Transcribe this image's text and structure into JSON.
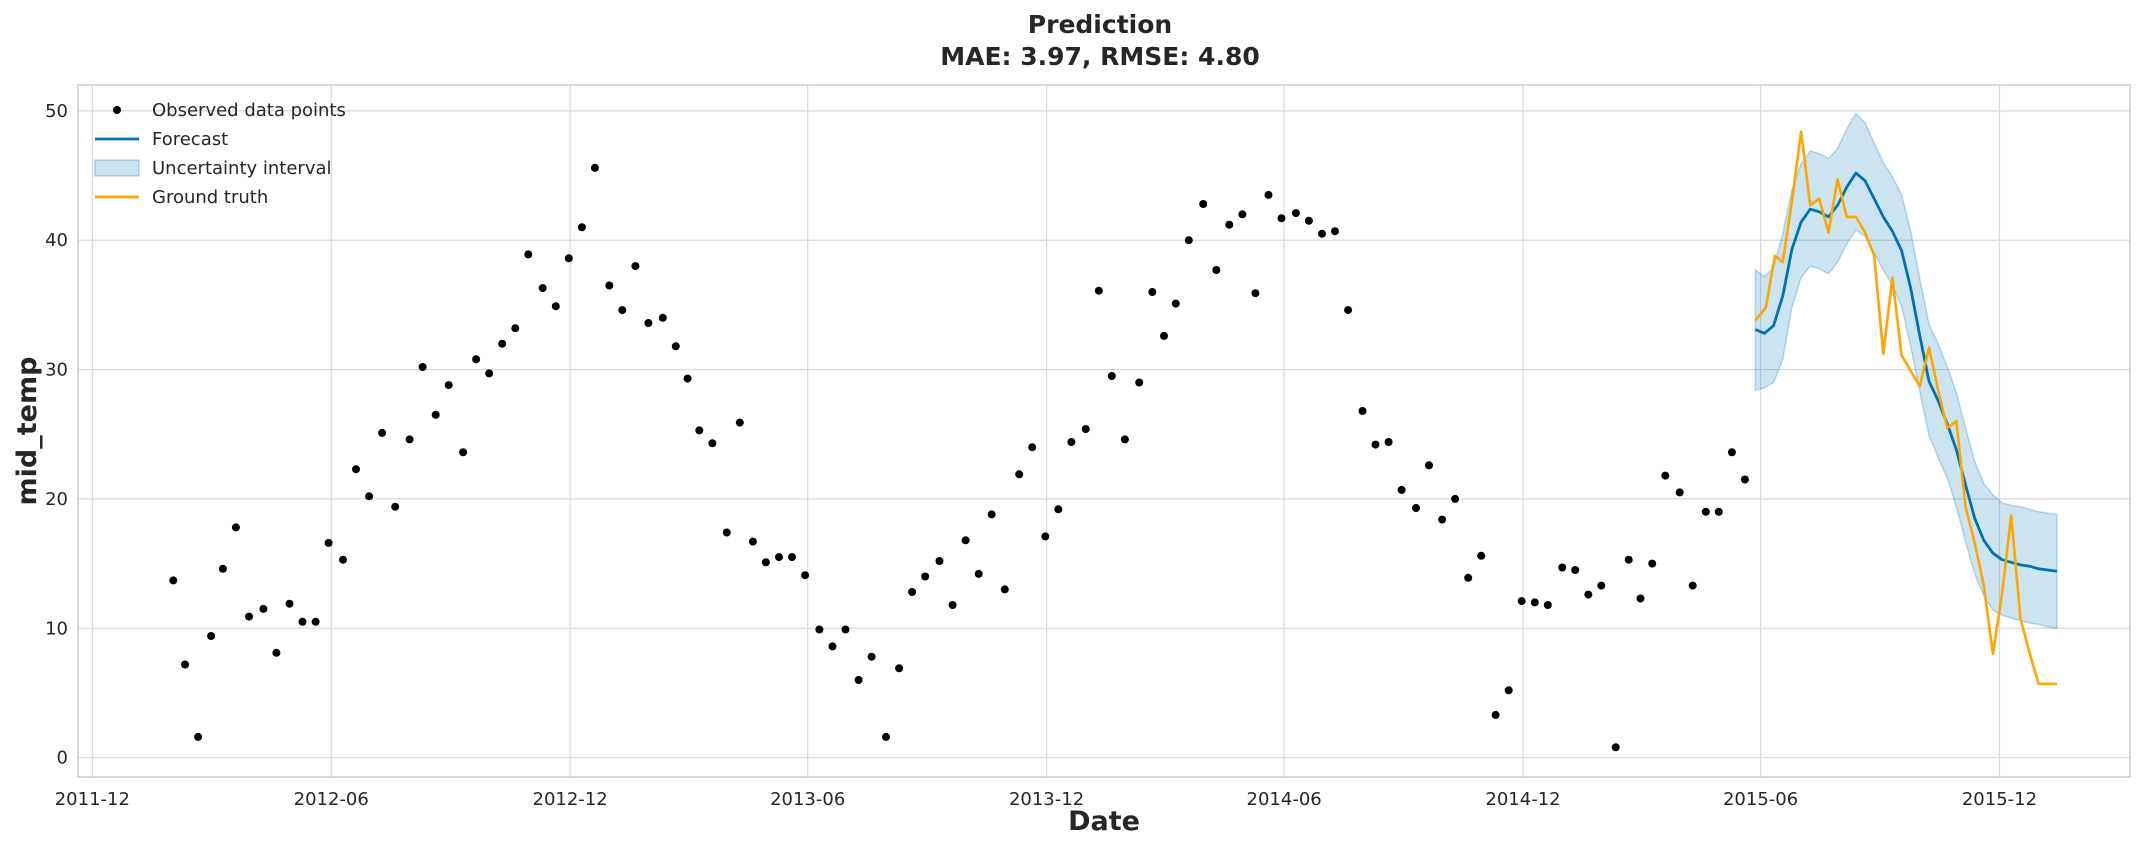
{
  "chart_data": {
    "type": "line",
    "title": "Prediction",
    "subtitle": "MAE: 3.97, RMSE: 4.80",
    "xlabel": "Date",
    "ylabel": "mid_temp",
    "xlim": [
      "2011-11-20",
      "2016-03-10"
    ],
    "ylim": [
      -1.5,
      52
    ],
    "x_ticks": [
      "2011-12",
      "2012-06",
      "2012-12",
      "2013-06",
      "2013-12",
      "2014-06",
      "2014-12",
      "2015-06",
      "2015-12"
    ],
    "y_ticks": [
      0,
      10,
      20,
      30,
      40,
      50
    ],
    "grid": true,
    "legend_position": "top-left",
    "colors": {
      "observed": "#000000",
      "forecast": "#0072B2",
      "uncertainty": "#0072B2",
      "ground_truth": "#FFA500"
    },
    "legend": [
      {
        "key": "observed",
        "label": "Observed data points",
        "style": "dot"
      },
      {
        "key": "forecast",
        "label": "Forecast",
        "style": "line"
      },
      {
        "key": "uncertainty",
        "label": "Uncertainty interval",
        "style": "band"
      },
      {
        "key": "ground_truth",
        "label": "Ground truth",
        "style": "line"
      }
    ],
    "series": [
      {
        "name": "Observed data points",
        "key": "observed",
        "x": [
          "2012-02-01",
          "2012-02-10",
          "2012-02-20",
          "2012-03-01",
          "2012-03-10",
          "2012-03-20",
          "2012-03-30",
          "2012-04-10",
          "2012-04-20",
          "2012-04-30",
          "2012-05-10",
          "2012-05-20",
          "2012-05-30",
          "2012-06-10",
          "2012-06-20",
          "2012-06-30",
          "2012-07-10",
          "2012-07-20",
          "2012-07-31",
          "2012-08-10",
          "2012-08-20",
          "2012-08-30",
          "2012-09-10",
          "2012-09-20",
          "2012-09-30",
          "2012-10-10",
          "2012-10-20",
          "2012-10-30",
          "2012-11-10",
          "2012-11-20",
          "2012-11-30",
          "2012-12-10",
          "2012-12-20",
          "2012-12-31",
          "2013-01-10",
          "2013-01-20",
          "2013-01-30",
          "2013-02-10",
          "2013-02-20",
          "2013-03-01",
          "2013-03-10",
          "2013-03-20",
          "2013-03-31",
          "2013-04-10",
          "2013-04-20",
          "2013-04-30",
          "2013-05-10",
          "2013-05-20",
          "2013-05-30",
          "2013-06-10",
          "2013-06-20",
          "2013-06-30",
          "2013-07-10",
          "2013-07-20",
          "2013-07-31",
          "2013-08-10",
          "2013-08-20",
          "2013-08-30",
          "2013-09-10",
          "2013-09-20",
          "2013-09-30",
          "2013-10-10",
          "2013-10-20",
          "2013-10-30",
          "2013-11-10",
          "2013-11-20",
          "2013-11-30",
          "2013-12-10",
          "2013-12-20",
          "2013-12-31",
          "2014-01-10",
          "2014-01-20",
          "2014-01-30",
          "2014-02-10",
          "2014-02-20",
          "2014-03-01",
          "2014-03-10",
          "2014-03-20",
          "2014-03-31",
          "2014-04-10",
          "2014-04-20",
          "2014-04-30",
          "2014-05-10",
          "2014-05-20",
          "2014-05-30",
          "2014-06-10",
          "2014-06-20",
          "2014-06-30",
          "2014-07-10",
          "2014-07-20",
          "2014-07-31",
          "2014-08-10",
          "2014-08-20",
          "2014-08-30",
          "2014-09-10",
          "2014-09-20",
          "2014-09-30",
          "2014-10-10",
          "2014-10-20",
          "2014-10-30",
          "2014-11-10",
          "2014-11-20",
          "2014-11-30",
          "2014-12-10",
          "2014-12-20",
          "2014-12-31",
          "2015-01-10",
          "2015-01-20",
          "2015-01-30",
          "2015-02-10",
          "2015-02-20",
          "2015-03-01",
          "2015-03-10",
          "2015-03-20",
          "2015-03-31",
          "2015-04-10",
          "2015-04-20",
          "2015-04-30",
          "2015-05-10",
          "2015-05-20"
        ],
        "y": [
          13.7,
          7.2,
          1.6,
          9.4,
          14.6,
          17.8,
          10.9,
          11.5,
          8.1,
          11.9,
          10.5,
          10.5,
          16.6,
          15.3,
          22.3,
          20.2,
          25.1,
          19.4,
          24.6,
          30.2,
          26.5,
          28.8,
          23.6,
          30.8,
          29.7,
          32.0,
          33.2,
          38.9,
          36.3,
          34.9,
          38.6,
          41.0,
          45.6,
          36.5,
          34.6,
          38.0,
          33.6,
          34.0,
          31.8,
          29.3,
          25.3,
          24.3,
          17.4,
          25.9,
          16.7,
          15.1,
          15.5,
          15.5,
          14.1,
          9.9,
          8.6,
          9.9,
          6.0,
          7.8,
          1.6,
          6.9,
          12.8,
          14.0,
          15.2,
          11.8,
          16.8,
          14.2,
          18.8,
          13.0,
          21.9,
          24.0,
          17.1,
          19.2,
          24.4,
          25.4,
          36.1,
          29.5,
          24.6,
          29.0,
          36.0,
          32.6,
          35.1,
          40.0,
          42.8,
          37.7,
          41.2,
          42.0,
          35.9,
          43.5,
          41.7,
          42.1,
          41.5,
          40.5,
          40.7,
          34.6,
          26.8,
          24.2,
          24.4,
          20.7,
          19.3,
          22.6,
          18.4,
          20.0,
          13.9,
          15.6,
          3.3,
          5.2,
          12.1,
          12.0,
          11.8,
          14.7,
          14.5,
          12.6,
          13.3,
          0.8,
          15.3,
          12.3,
          15.0,
          21.8,
          20.5,
          13.3,
          19.0,
          19.0,
          23.6,
          21.5
        ]
      },
      {
        "name": "Forecast",
        "key": "forecast",
        "x": [
          "2015-05-28",
          "2015-06-04",
          "2015-06-11",
          "2015-06-18",
          "2015-06-25",
          "2015-07-02",
          "2015-07-09",
          "2015-07-16",
          "2015-07-23",
          "2015-07-30",
          "2015-08-06",
          "2015-08-13",
          "2015-08-20",
          "2015-08-27",
          "2015-09-03",
          "2015-09-10",
          "2015-09-17",
          "2015-09-24",
          "2015-10-01",
          "2015-10-08",
          "2015-10-15",
          "2015-10-22",
          "2015-10-29",
          "2015-11-05",
          "2015-11-12",
          "2015-11-19",
          "2015-11-26",
          "2015-12-03",
          "2015-12-10",
          "2015-12-17",
          "2015-12-24",
          "2015-12-31",
          "2016-01-07",
          "2016-01-14"
        ],
        "y": [
          33.1,
          32.8,
          33.4,
          35.7,
          39.3,
          41.4,
          42.4,
          42.2,
          41.8,
          42.7,
          44.1,
          45.2,
          44.6,
          43.2,
          41.8,
          40.7,
          39.2,
          36.3,
          32.6,
          29.1,
          27.6,
          25.8,
          23.8,
          21.1,
          18.5,
          16.8,
          15.8,
          15.3,
          15.1,
          14.9,
          14.8,
          14.6,
          14.5,
          14.4
        ]
      },
      {
        "name": "Uncertainty interval",
        "key": "uncertainty",
        "x": [
          "2015-05-28",
          "2015-06-04",
          "2015-06-11",
          "2015-06-18",
          "2015-06-25",
          "2015-07-02",
          "2015-07-09",
          "2015-07-16",
          "2015-07-23",
          "2015-07-30",
          "2015-08-06",
          "2015-08-13",
          "2015-08-20",
          "2015-08-27",
          "2015-09-03",
          "2015-09-10",
          "2015-09-17",
          "2015-09-24",
          "2015-10-01",
          "2015-10-08",
          "2015-10-15",
          "2015-10-22",
          "2015-10-29",
          "2015-11-05",
          "2015-11-12",
          "2015-11-19",
          "2015-11-26",
          "2015-12-03",
          "2015-12-10",
          "2015-12-17",
          "2015-12-24",
          "2015-12-31",
          "2016-01-07",
          "2016-01-14"
        ],
        "lower": [
          28.4,
          28.6,
          29.0,
          30.8,
          34.8,
          37.1,
          38.0,
          37.8,
          37.4,
          38.3,
          39.7,
          40.8,
          40.3,
          39.0,
          37.7,
          36.5,
          34.9,
          31.8,
          28.3,
          24.9,
          23.2,
          21.6,
          19.4,
          16.7,
          14.2,
          12.5,
          11.4,
          11.0,
          10.8,
          10.6,
          10.4,
          10.3,
          10.1,
          10.0
        ],
        "upper": [
          37.7,
          37.2,
          37.9,
          40.5,
          43.9,
          45.9,
          46.9,
          46.7,
          46.3,
          47.1,
          48.6,
          49.8,
          49.1,
          47.5,
          46.0,
          44.9,
          43.5,
          40.7,
          37.0,
          33.5,
          32.0,
          30.2,
          28.2,
          25.5,
          22.9,
          21.2,
          20.3,
          19.7,
          19.5,
          19.4,
          19.2,
          19.0,
          18.9,
          18.8
        ]
      },
      {
        "name": "Ground truth",
        "key": "ground_truth",
        "x": [
          "2015-05-28",
          "2015-06-05",
          "2015-06-12",
          "2015-06-18",
          "2015-06-25",
          "2015-07-02",
          "2015-07-09",
          "2015-07-16",
          "2015-07-23",
          "2015-07-30",
          "2015-08-06",
          "2015-08-13",
          "2015-08-20",
          "2015-08-27",
          "2015-09-03",
          "2015-09-10",
          "2015-09-17",
          "2015-09-24",
          "2015-10-01",
          "2015-10-08",
          "2015-10-15",
          "2015-10-22",
          "2015-10-29",
          "2015-11-05",
          "2015-11-12",
          "2015-11-19",
          "2015-11-26",
          "2015-12-03",
          "2015-12-10",
          "2015-12-17",
          "2015-12-24",
          "2015-12-31",
          "2016-01-07",
          "2016-01-14"
        ],
        "y": [
          33.8,
          34.8,
          38.8,
          38.3,
          43.0,
          48.4,
          42.7,
          43.2,
          40.6,
          44.7,
          41.8,
          41.8,
          40.6,
          38.8,
          31.2,
          37.1,
          31.1,
          29.9,
          28.7,
          31.7,
          28.4,
          25.5,
          26.0,
          19.4,
          16.6,
          13.3,
          8.0,
          12.7,
          18.7,
          10.8,
          8.1,
          5.7,
          5.7,
          5.7
        ]
      }
    ]
  }
}
